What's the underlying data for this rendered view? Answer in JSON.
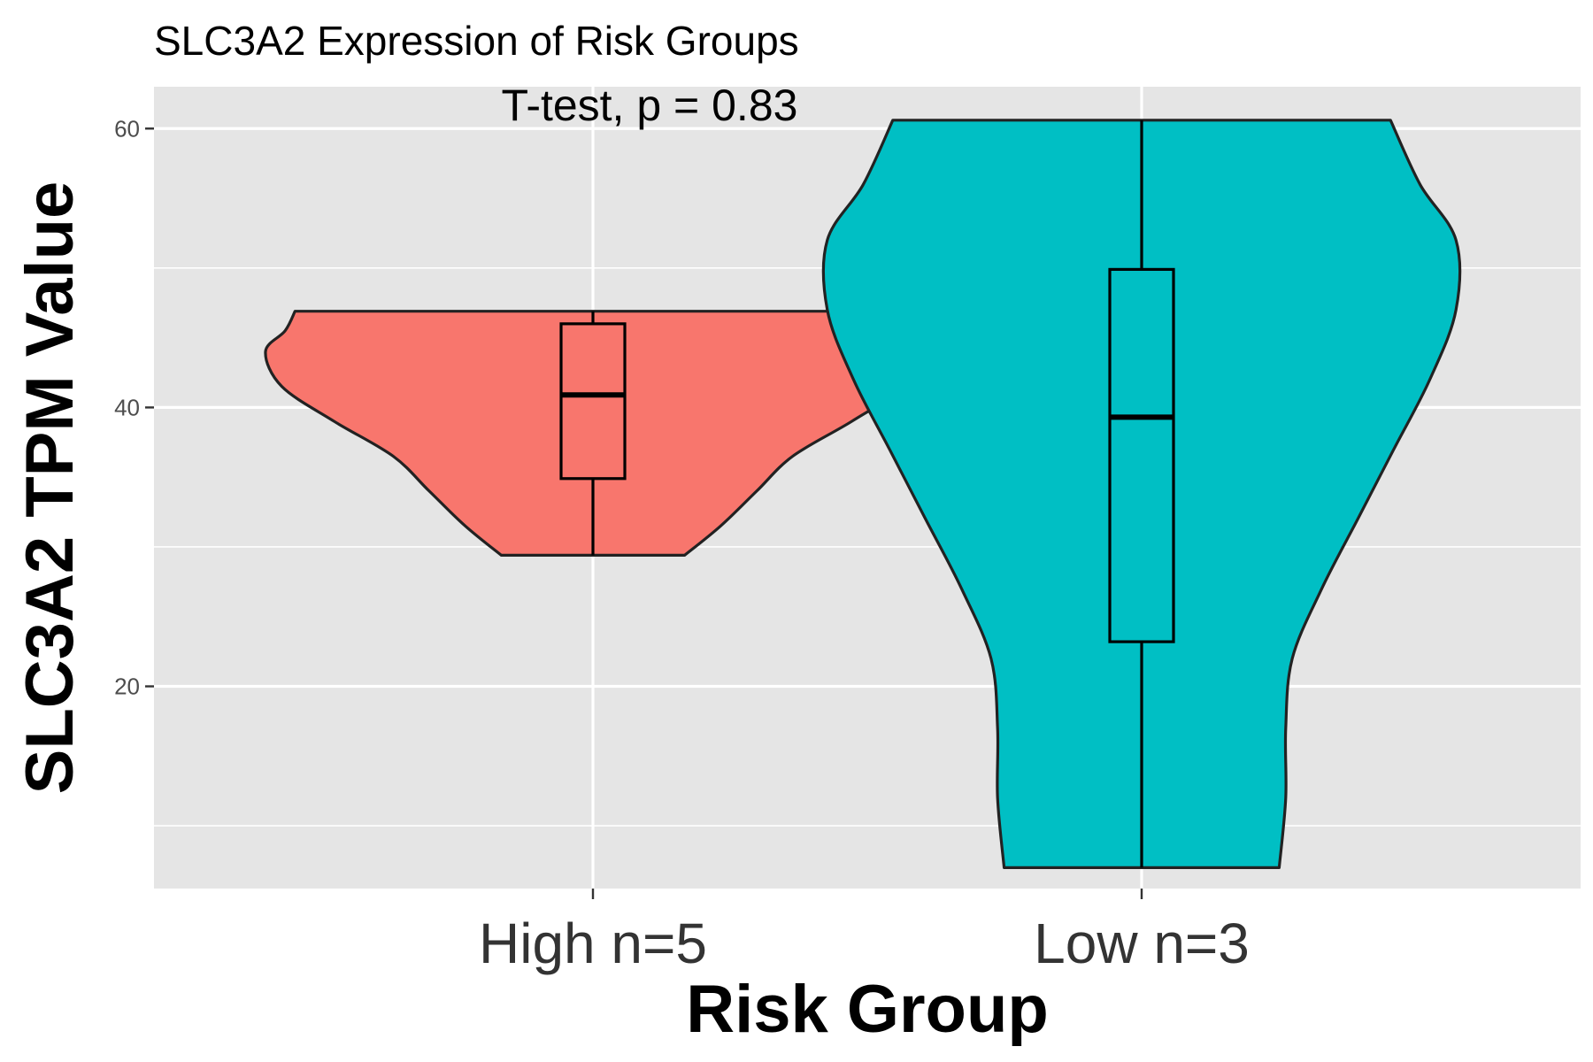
{
  "chart_data": {
    "type": "violin",
    "title": "SLC3A2 Expression of Risk Groups",
    "annotation": "T-test, p = 0.83",
    "xlabel": "Risk Group",
    "ylabel": "SLC3A2 TPM Value",
    "ylim": [
      5.5,
      63
    ],
    "yticks": [
      20,
      40,
      60
    ],
    "grid": true,
    "legend": "none",
    "categories": [
      "High n=5",
      "Low n=3"
    ],
    "series": [
      {
        "category": "High n=5",
        "color": "#F8766D",
        "min": 29.4,
        "q1": 34.9,
        "median": 40.9,
        "q3": 46.0,
        "max": 46.9,
        "density": [
          [
            29.4,
            0.28
          ],
          [
            31.5,
            0.39
          ],
          [
            34,
            0.5
          ],
          [
            36.5,
            0.61
          ],
          [
            39,
            0.79
          ],
          [
            41.5,
            0.95
          ],
          [
            44,
            1.0
          ],
          [
            45.5,
            0.94
          ],
          [
            46.9,
            0.91
          ]
        ]
      },
      {
        "category": "Low n=3",
        "color": "#00BFC4",
        "min": 7.0,
        "q1": 23.2,
        "median": 39.3,
        "q3": 49.9,
        "max": 60.6,
        "density": [
          [
            7.0,
            0.42
          ],
          [
            12,
            0.44
          ],
          [
            17,
            0.44
          ],
          [
            22,
            0.46
          ],
          [
            27,
            0.55
          ],
          [
            32,
            0.66
          ],
          [
            37,
            0.77
          ],
          [
            42,
            0.88
          ],
          [
            47,
            0.96
          ],
          [
            52,
            0.96
          ],
          [
            56,
            0.85
          ],
          [
            60.6,
            0.76
          ]
        ]
      }
    ]
  }
}
